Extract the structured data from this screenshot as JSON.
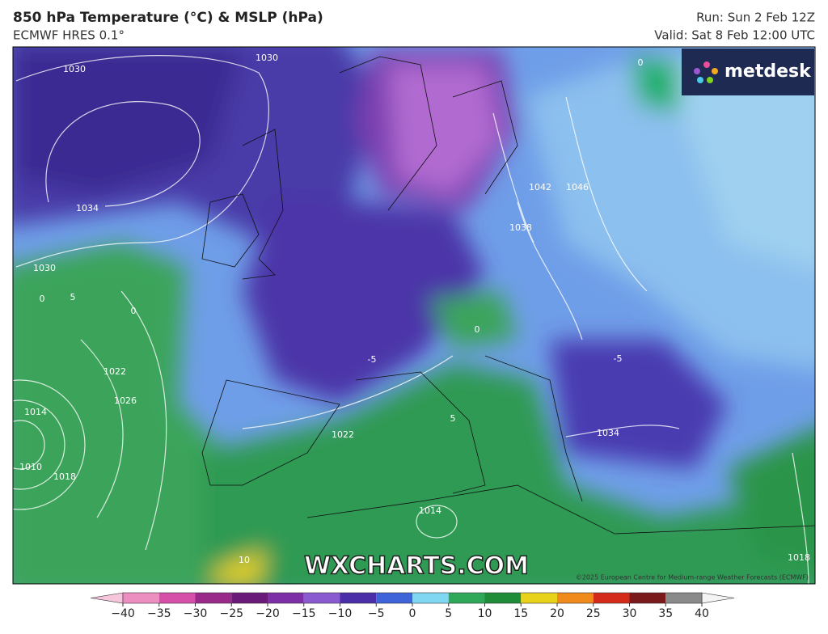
{
  "header": {
    "title": "850 hPa Temperature (°C) & MSLP (hPa)",
    "subtitle": "ECMWF HRES 0.1°",
    "run": "Run: Sun 2 Feb 12Z",
    "valid": "Valid: Sat 8 Feb 12:00 UTC"
  },
  "logo": "metdesk",
  "watermark": "WXCHARTS.COM",
  "copyright": "©2025 European Centre for Medium-range Weather Forecasts (ECMWF)",
  "isobar_labels": [
    "1030",
    "1030",
    "1034",
    "1030",
    "1022",
    "1026",
    "1014",
    "1010",
    "1018",
    "1022",
    "1038",
    "1042",
    "1046",
    "1034",
    "1014",
    "1018"
  ],
  "temperature_labels": [
    "0",
    "5",
    "0",
    "-5",
    "0",
    "5",
    "10",
    "-5",
    "0"
  ],
  "colorbar": {
    "lim": [
      -40,
      40
    ],
    "ticks": [
      {
        "value": -40,
        "label": "−40"
      },
      {
        "value": -35,
        "label": "−35"
      },
      {
        "value": -30,
        "label": "−30"
      },
      {
        "value": -25,
        "label": "−25"
      },
      {
        "value": -20,
        "label": "−20"
      },
      {
        "value": -15,
        "label": "−15"
      },
      {
        "value": -10,
        "label": "−10"
      },
      {
        "value": -5,
        "label": "−5"
      },
      0,
      5,
      10,
      15,
      20,
      25,
      30,
      35,
      40
    ],
    "under_color": "#f7c6dc",
    "over_color": "#f4f4f4",
    "colors": [
      "#ec8fc0",
      "#d64fa8",
      "#9a2a8a",
      "#6a1a78",
      "#7c2fa6",
      "#8a5ad0",
      "#4a2fa8",
      "#3f63d8",
      "#7fd7f2",
      "#2fa85a",
      "#1f8c3a",
      "#e8d21a",
      "#f08a1a",
      "#d42a1a",
      "#7a1a1a",
      "#8a8a8a"
    ]
  }
}
